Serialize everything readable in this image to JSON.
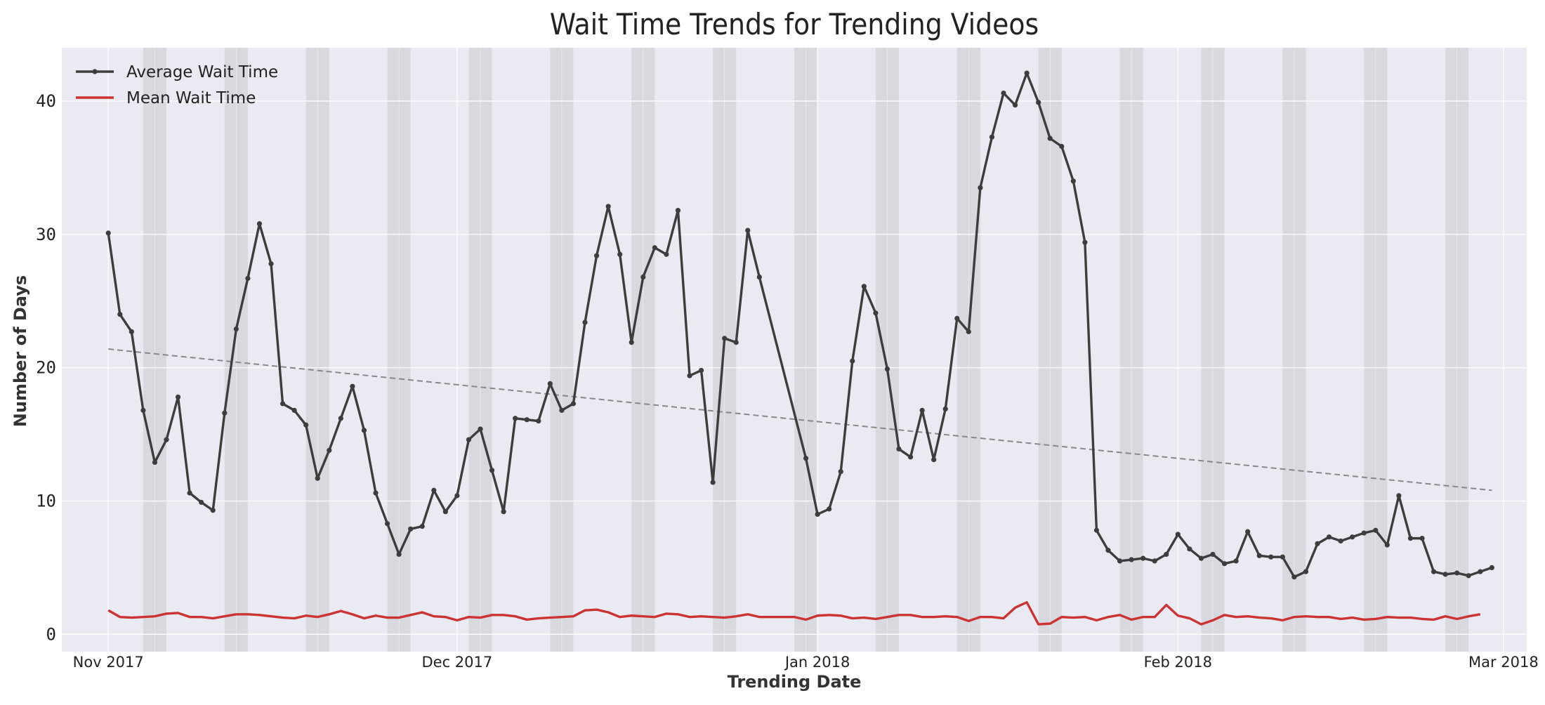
{
  "chart_data": {
    "type": "line",
    "title": "Wait Time Trends for Trending Videos",
    "xlabel": "Trending Date",
    "ylabel": "Number of Days",
    "xlim": [
      "2017-10-28",
      "2018-03-03"
    ],
    "ylim": [
      -1.3,
      44
    ],
    "x_ticks": [
      {
        "date": "2017-11-01",
        "label": "Nov 2017"
      },
      {
        "date": "2017-12-01",
        "label": "Dec 2017"
      },
      {
        "date": "2018-01-01",
        "label": "Jan 2018"
      },
      {
        "date": "2018-02-01",
        "label": "Feb 2018"
      },
      {
        "date": "2018-03-01",
        "label": "Mar 2018"
      }
    ],
    "y_ticks": [
      0,
      10,
      20,
      30,
      40
    ],
    "grid": true,
    "legend_position": "top-left",
    "weekend_bands": [
      [
        "2017-11-04",
        "2017-11-06"
      ],
      [
        "2017-11-11",
        "2017-11-13"
      ],
      [
        "2017-11-18",
        "2017-11-20"
      ],
      [
        "2017-11-25",
        "2017-11-27"
      ],
      [
        "2017-12-02",
        "2017-12-04"
      ],
      [
        "2017-12-09",
        "2017-12-11"
      ],
      [
        "2017-12-16",
        "2017-12-18"
      ],
      [
        "2017-12-23",
        "2017-12-25"
      ],
      [
        "2017-12-30",
        "2018-01-01"
      ],
      [
        "2018-01-06",
        "2018-01-08"
      ],
      [
        "2018-01-13",
        "2018-01-15"
      ],
      [
        "2018-01-20",
        "2018-01-22"
      ],
      [
        "2018-01-27",
        "2018-01-29"
      ],
      [
        "2018-02-03",
        "2018-02-05"
      ],
      [
        "2018-02-10",
        "2018-02-12"
      ],
      [
        "2018-02-17",
        "2018-02-19"
      ],
      [
        "2018-02-24",
        "2018-02-26"
      ]
    ],
    "series": [
      {
        "name": "Average Wait Time",
        "color": "#3d3d3d",
        "markers": true,
        "points": [
          [
            "2017-11-01",
            30.1
          ],
          [
            "2017-11-02",
            24.0
          ],
          [
            "2017-11-03",
            22.7
          ],
          [
            "2017-11-04",
            16.8
          ],
          [
            "2017-11-05",
            12.9
          ],
          [
            "2017-11-06",
            14.6
          ],
          [
            "2017-11-07",
            17.8
          ],
          [
            "2017-11-08",
            10.6
          ],
          [
            "2017-11-09",
            9.9
          ],
          [
            "2017-11-10",
            9.3
          ],
          [
            "2017-11-11",
            16.6
          ],
          [
            "2017-11-12",
            22.9
          ],
          [
            "2017-11-13",
            26.7
          ],
          [
            "2017-11-14",
            30.8
          ],
          [
            "2017-11-15",
            27.8
          ],
          [
            "2017-11-16",
            17.3
          ],
          [
            "2017-11-17",
            16.8
          ],
          [
            "2017-11-18",
            15.7
          ],
          [
            "2017-11-19",
            11.7
          ],
          [
            "2017-11-20",
            13.8
          ],
          [
            "2017-11-21",
            16.2
          ],
          [
            "2017-11-22",
            18.6
          ],
          [
            "2017-11-23",
            15.3
          ],
          [
            "2017-11-24",
            10.6
          ],
          [
            "2017-11-25",
            8.3
          ],
          [
            "2017-11-26",
            6.0
          ],
          [
            "2017-11-27",
            7.9
          ],
          [
            "2017-11-28",
            8.1
          ],
          [
            "2017-11-29",
            10.8
          ],
          [
            "2017-11-30",
            9.2
          ],
          [
            "2017-12-01",
            10.4
          ],
          [
            "2017-12-02",
            14.6
          ],
          [
            "2017-12-03",
            15.4
          ],
          [
            "2017-12-04",
            12.3
          ],
          [
            "2017-12-05",
            9.2
          ],
          [
            "2017-12-06",
            16.2
          ],
          [
            "2017-12-07",
            16.1
          ],
          [
            "2017-12-08",
            16.0
          ],
          [
            "2017-12-09",
            18.8
          ],
          [
            "2017-12-10",
            16.8
          ],
          [
            "2017-12-11",
            17.3
          ],
          [
            "2017-12-12",
            23.4
          ],
          [
            "2017-12-13",
            28.4
          ],
          [
            "2017-12-14",
            32.1
          ],
          [
            "2017-12-15",
            28.5
          ],
          [
            "2017-12-16",
            21.9
          ],
          [
            "2017-12-17",
            26.8
          ],
          [
            "2017-12-18",
            29.0
          ],
          [
            "2017-12-19",
            28.5
          ],
          [
            "2017-12-20",
            31.8
          ],
          [
            "2017-12-21",
            19.4
          ],
          [
            "2017-12-22",
            19.8
          ],
          [
            "2017-12-23",
            11.4
          ],
          [
            "2017-12-24",
            22.2
          ],
          [
            "2017-12-25",
            21.9
          ],
          [
            "2017-12-26",
            30.3
          ],
          [
            "2017-12-27",
            26.8
          ],
          [
            "2017-12-31",
            13.2
          ],
          [
            "2018-01-01",
            9.0
          ],
          [
            "2018-01-02",
            9.4
          ],
          [
            "2018-01-03",
            12.2
          ],
          [
            "2018-01-04",
            20.5
          ],
          [
            "2018-01-05",
            26.1
          ],
          [
            "2018-01-06",
            24.1
          ],
          [
            "2018-01-07",
            19.9
          ],
          [
            "2018-01-08",
            13.9
          ],
          [
            "2018-01-09",
            13.3
          ],
          [
            "2018-01-10",
            16.8
          ],
          [
            "2018-01-11",
            13.1
          ],
          [
            "2018-01-12",
            16.9
          ],
          [
            "2018-01-13",
            23.7
          ],
          [
            "2018-01-14",
            22.7
          ],
          [
            "2018-01-15",
            33.5
          ],
          [
            "2018-01-16",
            37.3
          ],
          [
            "2018-01-17",
            40.6
          ],
          [
            "2018-01-18",
            39.7
          ],
          [
            "2018-01-19",
            42.1
          ],
          [
            "2018-01-20",
            39.9
          ],
          [
            "2018-01-21",
            37.2
          ],
          [
            "2018-01-22",
            36.6
          ],
          [
            "2018-01-23",
            34.0
          ],
          [
            "2018-01-24",
            29.4
          ],
          [
            "2018-01-25",
            7.8
          ],
          [
            "2018-01-26",
            6.3
          ],
          [
            "2018-01-27",
            5.5
          ],
          [
            "2018-01-28",
            5.6
          ],
          [
            "2018-01-29",
            5.7
          ],
          [
            "2018-01-30",
            5.5
          ],
          [
            "2018-01-31",
            6.0
          ],
          [
            "2018-02-01",
            7.5
          ],
          [
            "2018-02-02",
            6.4
          ],
          [
            "2018-02-03",
            5.7
          ],
          [
            "2018-02-04",
            6.0
          ],
          [
            "2018-02-05",
            5.3
          ],
          [
            "2018-02-06",
            5.5
          ],
          [
            "2018-02-07",
            7.7
          ],
          [
            "2018-02-08",
            5.9
          ],
          [
            "2018-02-09",
            5.8
          ],
          [
            "2018-02-10",
            5.8
          ],
          [
            "2018-02-11",
            4.3
          ],
          [
            "2018-02-12",
            4.7
          ],
          [
            "2018-02-13",
            6.8
          ],
          [
            "2018-02-14",
            7.3
          ],
          [
            "2018-02-15",
            7.0
          ],
          [
            "2018-02-16",
            7.3
          ],
          [
            "2018-02-17",
            7.6
          ],
          [
            "2018-02-18",
            7.8
          ],
          [
            "2018-02-19",
            6.7
          ],
          [
            "2018-02-20",
            10.4
          ],
          [
            "2018-02-21",
            7.2
          ],
          [
            "2018-02-22",
            7.2
          ],
          [
            "2018-02-23",
            4.7
          ],
          [
            "2018-02-24",
            4.5
          ],
          [
            "2018-02-25",
            4.6
          ],
          [
            "2018-02-26",
            4.4
          ],
          [
            "2018-02-27",
            4.7
          ],
          [
            "2018-02-28",
            5.0
          ]
        ]
      },
      {
        "name": "Mean Wait Time",
        "color": "#cc3333",
        "markers": false,
        "points": [
          [
            "2017-11-01",
            1.8
          ],
          [
            "2017-11-02",
            1.3
          ],
          [
            "2017-11-03",
            1.25
          ],
          [
            "2017-11-04",
            1.3
          ],
          [
            "2017-11-05",
            1.35
          ],
          [
            "2017-11-06",
            1.55
          ],
          [
            "2017-11-07",
            1.6
          ],
          [
            "2017-11-08",
            1.3
          ],
          [
            "2017-11-09",
            1.3
          ],
          [
            "2017-11-10",
            1.2
          ],
          [
            "2017-11-11",
            1.35
          ],
          [
            "2017-11-12",
            1.5
          ],
          [
            "2017-11-13",
            1.5
          ],
          [
            "2017-11-14",
            1.45
          ],
          [
            "2017-11-15",
            1.35
          ],
          [
            "2017-11-16",
            1.25
          ],
          [
            "2017-11-17",
            1.2
          ],
          [
            "2017-11-18",
            1.4
          ],
          [
            "2017-11-19",
            1.3
          ],
          [
            "2017-11-20",
            1.5
          ],
          [
            "2017-11-21",
            1.75
          ],
          [
            "2017-11-22",
            1.5
          ],
          [
            "2017-11-23",
            1.2
          ],
          [
            "2017-11-24",
            1.4
          ],
          [
            "2017-11-25",
            1.25
          ],
          [
            "2017-11-26",
            1.25
          ],
          [
            "2017-11-27",
            1.45
          ],
          [
            "2017-11-28",
            1.65
          ],
          [
            "2017-11-29",
            1.35
          ],
          [
            "2017-11-30",
            1.3
          ],
          [
            "2017-12-01",
            1.05
          ],
          [
            "2017-12-02",
            1.3
          ],
          [
            "2017-12-03",
            1.25
          ],
          [
            "2017-12-04",
            1.45
          ],
          [
            "2017-12-05",
            1.45
          ],
          [
            "2017-12-06",
            1.35
          ],
          [
            "2017-12-07",
            1.1
          ],
          [
            "2017-12-08",
            1.2
          ],
          [
            "2017-12-09",
            1.25
          ],
          [
            "2017-12-10",
            1.3
          ],
          [
            "2017-12-11",
            1.35
          ],
          [
            "2017-12-12",
            1.8
          ],
          [
            "2017-12-13",
            1.85
          ],
          [
            "2017-12-14",
            1.65
          ],
          [
            "2017-12-15",
            1.3
          ],
          [
            "2017-12-16",
            1.4
          ],
          [
            "2017-12-17",
            1.35
          ],
          [
            "2017-12-18",
            1.3
          ],
          [
            "2017-12-19",
            1.55
          ],
          [
            "2017-12-20",
            1.5
          ],
          [
            "2017-12-21",
            1.3
          ],
          [
            "2017-12-22",
            1.35
          ],
          [
            "2017-12-23",
            1.3
          ],
          [
            "2017-12-24",
            1.25
          ],
          [
            "2017-12-25",
            1.35
          ],
          [
            "2017-12-26",
            1.5
          ],
          [
            "2017-12-27",
            1.3
          ],
          [
            "2017-12-28",
            1.3
          ],
          [
            "2017-12-29",
            1.3
          ],
          [
            "2017-12-30",
            1.3
          ],
          [
            "2017-12-31",
            1.1
          ],
          [
            "2018-01-01",
            1.4
          ],
          [
            "2018-01-02",
            1.45
          ],
          [
            "2018-01-03",
            1.4
          ],
          [
            "2018-01-04",
            1.2
          ],
          [
            "2018-01-05",
            1.25
          ],
          [
            "2018-01-06",
            1.15
          ],
          [
            "2018-01-07",
            1.3
          ],
          [
            "2018-01-08",
            1.45
          ],
          [
            "2018-01-09",
            1.45
          ],
          [
            "2018-01-10",
            1.3
          ],
          [
            "2018-01-11",
            1.3
          ],
          [
            "2018-01-12",
            1.35
          ],
          [
            "2018-01-13",
            1.3
          ],
          [
            "2018-01-14",
            1.0
          ],
          [
            "2018-01-15",
            1.3
          ],
          [
            "2018-01-16",
            1.3
          ],
          [
            "2018-01-17",
            1.2
          ],
          [
            "2018-01-18",
            2.0
          ],
          [
            "2018-01-19",
            2.4
          ],
          [
            "2018-01-20",
            0.75
          ],
          [
            "2018-01-21",
            0.8
          ],
          [
            "2018-01-22",
            1.3
          ],
          [
            "2018-01-23",
            1.25
          ],
          [
            "2018-01-24",
            1.3
          ],
          [
            "2018-01-25",
            1.05
          ],
          [
            "2018-01-26",
            1.3
          ],
          [
            "2018-01-27",
            1.45
          ],
          [
            "2018-01-28",
            1.1
          ],
          [
            "2018-01-29",
            1.3
          ],
          [
            "2018-01-30",
            1.3
          ],
          [
            "2018-01-31",
            2.2
          ],
          [
            "2018-02-01",
            1.4
          ],
          [
            "2018-02-02",
            1.2
          ],
          [
            "2018-02-03",
            0.75
          ],
          [
            "2018-02-04",
            1.05
          ],
          [
            "2018-02-05",
            1.45
          ],
          [
            "2018-02-06",
            1.3
          ],
          [
            "2018-02-07",
            1.35
          ],
          [
            "2018-02-08",
            1.25
          ],
          [
            "2018-02-09",
            1.2
          ],
          [
            "2018-02-10",
            1.05
          ],
          [
            "2018-02-11",
            1.3
          ],
          [
            "2018-02-12",
            1.35
          ],
          [
            "2018-02-13",
            1.3
          ],
          [
            "2018-02-14",
            1.3
          ],
          [
            "2018-02-15",
            1.15
          ],
          [
            "2018-02-16",
            1.25
          ],
          [
            "2018-02-17",
            1.1
          ],
          [
            "2018-02-18",
            1.15
          ],
          [
            "2018-02-19",
            1.3
          ],
          [
            "2018-02-20",
            1.25
          ],
          [
            "2018-02-21",
            1.25
          ],
          [
            "2018-02-22",
            1.15
          ],
          [
            "2018-02-23",
            1.1
          ],
          [
            "2018-02-24",
            1.35
          ],
          [
            "2018-02-25",
            1.15
          ],
          [
            "2018-02-26",
            1.35
          ],
          [
            "2018-02-27",
            1.5
          ]
        ]
      }
    ],
    "trend_line": {
      "color": "#888888",
      "style": "dashed",
      "points": [
        [
          "2017-11-01",
          21.4
        ],
        [
          "2017-12-27",
          16.4
        ],
        [
          "2018-02-28",
          10.8
        ]
      ]
    }
  }
}
